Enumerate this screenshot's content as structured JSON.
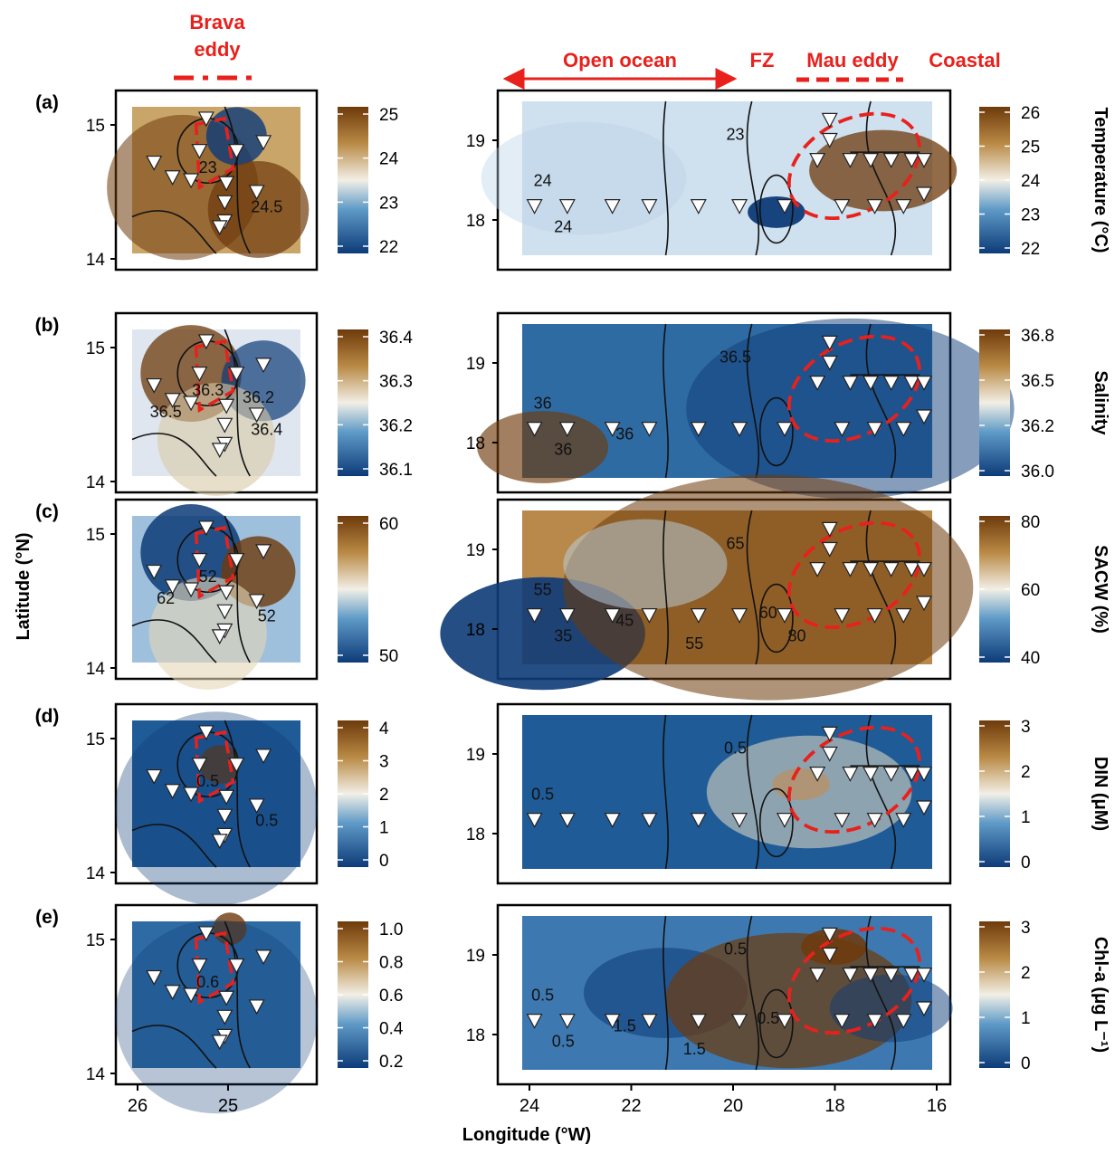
{
  "header": {
    "brava_line1": "Brava",
    "brava_line2": "eddy",
    "open_ocean": "Open ocean",
    "fz": "FZ",
    "mau_eddy": "Mau eddy",
    "coastal": "Coastal"
  },
  "axes": {
    "ylabel": "Latitude (°N)",
    "xlabel": "Longitude (°W)",
    "left_yticks": [
      "15",
      "14"
    ],
    "right_yticks": [
      "19",
      "18"
    ],
    "left_xticks": [
      "26",
      "25"
    ],
    "right_xticks": [
      "24",
      "22",
      "20",
      "18",
      "16"
    ]
  },
  "colors": {
    "low": "#0d3b78",
    "mid": "#f2efe6",
    "high": "#6e3a0b",
    "annotation": "#e8211c"
  },
  "chart_data": [
    {
      "type": "heatmap",
      "panel": "(a)",
      "variable": "Temperature (°C)",
      "left_colorbar_ticks": [
        "25",
        "24",
        "23",
        "22"
      ],
      "right_colorbar_ticks": [
        "26",
        "25",
        "24",
        "23",
        "22"
      ],
      "left_contour_labels": [
        "23",
        "24.5"
      ],
      "right_contour_labels": [
        "24",
        "23",
        "24"
      ]
    },
    {
      "type": "heatmap",
      "panel": "(b)",
      "variable": "Salinity",
      "left_colorbar_ticks": [
        "36.4",
        "36.3",
        "36.2",
        "36.1"
      ],
      "right_colorbar_ticks": [
        "36.8",
        "36.5",
        "36.2",
        "36.0"
      ],
      "left_contour_labels": [
        "36.3",
        "36.4",
        "36.5",
        "36.2"
      ],
      "right_contour_labels": [
        "36",
        "36.5",
        "36",
        "36"
      ]
    },
    {
      "type": "heatmap",
      "panel": "(c)",
      "variable": "SACW (%)",
      "left_colorbar_ticks": [
        "60",
        "50"
      ],
      "right_colorbar_ticks": [
        "80",
        "60",
        "40"
      ],
      "left_contour_labels": [
        "52",
        "52",
        "62"
      ],
      "right_contour_labels": [
        "55",
        "65",
        "35",
        "45",
        "55",
        "60",
        "80"
      ]
    },
    {
      "type": "heatmap",
      "panel": "(d)",
      "variable": "DIN (μM)",
      "left_colorbar_ticks": [
        "4",
        "3",
        "2",
        "1",
        "0"
      ],
      "right_colorbar_ticks": [
        "3",
        "2",
        "1",
        "0"
      ],
      "left_contour_labels": [
        "0.5",
        "0.5"
      ],
      "right_contour_labels": [
        "0.5",
        "0.5"
      ]
    },
    {
      "type": "heatmap",
      "panel": "(e)",
      "variable": "Chl-a (μg L⁻¹)",
      "left_colorbar_ticks": [
        "1.0",
        "0.8",
        "0.6",
        "0.4",
        "0.2"
      ],
      "right_colorbar_ticks": [
        "3",
        "2",
        "1",
        "0"
      ],
      "left_contour_labels": [
        "0.6"
      ],
      "right_contour_labels": [
        "0.5",
        "0.5",
        "0.5",
        "1.5",
        "1.5",
        "0.5"
      ]
    }
  ]
}
